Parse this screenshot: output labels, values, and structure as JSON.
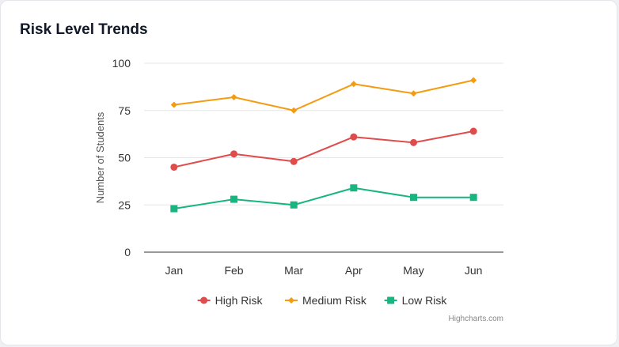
{
  "card": {
    "title": "Risk Level Trends"
  },
  "credits": "Highcharts.com",
  "chart_data": {
    "type": "line",
    "title": "Risk Level Trends",
    "categories": [
      "Jan",
      "Feb",
      "Mar",
      "Apr",
      "May",
      "Jun"
    ],
    "xlabel": "",
    "ylabel": "Number of Students",
    "ylim": [
      0,
      100
    ],
    "yticks": [
      0,
      25,
      50,
      75,
      100
    ],
    "grid": true,
    "legend_position": "bottom",
    "series": [
      {
        "name": "High Risk",
        "color": "#e04b4b",
        "marker": "circle",
        "values": [
          45,
          52,
          48,
          61,
          58,
          64
        ]
      },
      {
        "name": "Medium Risk",
        "color": "#f39c12",
        "marker": "diamond",
        "values": [
          78,
          82,
          75,
          89,
          84,
          91
        ]
      },
      {
        "name": "Low Risk",
        "color": "#17b57f",
        "marker": "square",
        "values": [
          23,
          28,
          25,
          34,
          29,
          29
        ]
      }
    ]
  }
}
